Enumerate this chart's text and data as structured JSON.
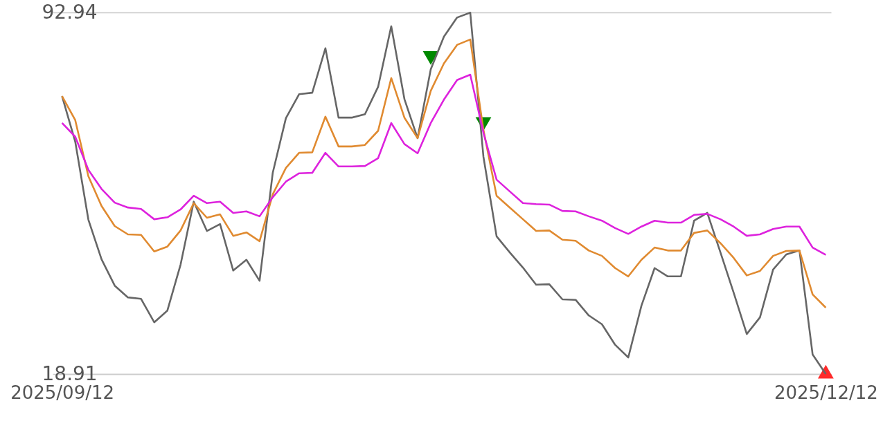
{
  "chart_data": {
    "type": "line",
    "categories": [
      "2025/09/12",
      null,
      null,
      null,
      null,
      null,
      null,
      null,
      null,
      null,
      null,
      null,
      null,
      null,
      null,
      null,
      null,
      null,
      null,
      null,
      null,
      null,
      null,
      null,
      null,
      null,
      null,
      null,
      null,
      null,
      null,
      null,
      null,
      null,
      null,
      null,
      null,
      null,
      null,
      null,
      null,
      null,
      null,
      null,
      null,
      null,
      null,
      null,
      null,
      null,
      null,
      null,
      null,
      null,
      null,
      null,
      null,
      null,
      "2025/12/12"
    ],
    "ylim": [
      18.91,
      92.94
    ],
    "yticks": [
      18.91,
      92.94
    ],
    "grid": "y",
    "series": [
      {
        "color": "#666666",
        "values": [
          75.8,
          66.5,
          50.5,
          42.4,
          37.0,
          34.6,
          34.3,
          29.5,
          31.9,
          41.3,
          54.2,
          48.2,
          49.6,
          40.1,
          42.3,
          38.0,
          60.1,
          71.3,
          76.2,
          76.5,
          85.6,
          71.4,
          71.4,
          72.1,
          77.7,
          90.1,
          75.2,
          67.2,
          81.3,
          88.0,
          91.9,
          92.9,
          63.4,
          47.1,
          43.8,
          40.7,
          37.2,
          37.3,
          34.2,
          34.1,
          30.9,
          29.1,
          24.9,
          22.3,
          32.9,
          40.6,
          38.9,
          38.9,
          50.3,
          51.9,
          43.8,
          35.6,
          27.1,
          30.5,
          40.3,
          43.4,
          44.2,
          22.9,
          18.91
        ]
      },
      {
        "color": "#e08a30",
        "values": [
          75.8,
          70.9,
          59.4,
          53.3,
          49.2,
          47.5,
          47.4,
          44.0,
          45.0,
          48.3,
          53.9,
          50.9,
          51.6,
          47.2,
          47.9,
          46.1,
          55.7,
          61.1,
          64.2,
          64.3,
          71.6,
          65.5,
          65.5,
          65.8,
          68.7,
          79.5,
          71.4,
          67.2,
          76.9,
          82.5,
          86.3,
          87.4,
          68.9,
          55.4,
          53.0,
          50.6,
          48.2,
          48.3,
          46.4,
          46.2,
          44.2,
          43.1,
          40.6,
          38.9,
          42.3,
          44.8,
          44.2,
          44.2,
          47.8,
          48.3,
          45.7,
          42.7,
          39.1,
          40.0,
          43.1,
          44.1,
          44.2,
          35.2,
          32.5
        ]
      },
      {
        "color": "#dd22dd",
        "values": [
          70.3,
          67.5,
          60.7,
          56.8,
          54.0,
          53.0,
          52.7,
          50.6,
          51.0,
          52.6,
          55.4,
          53.9,
          54.2,
          51.9,
          52.2,
          51.2,
          55.1,
          58.3,
          60.0,
          60.1,
          64.2,
          61.4,
          61.4,
          61.5,
          63.1,
          70.3,
          66.0,
          64.1,
          70.3,
          75.1,
          79.1,
          80.2,
          68.3,
          58.7,
          56.3,
          53.9,
          53.7,
          53.6,
          52.3,
          52.2,
          51.2,
          50.3,
          48.8,
          47.6,
          49.1,
          50.3,
          49.9,
          49.9,
          51.5,
          51.7,
          50.6,
          49.1,
          47.2,
          47.5,
          48.6,
          49.1,
          49.1,
          44.8,
          43.3
        ]
      },
      {
        "type": "scatter",
        "marker": "triangle-down",
        "color": "#008800",
        "values": [
          null,
          null,
          null,
          null,
          null,
          null,
          null,
          null,
          null,
          null,
          null,
          null,
          null,
          null,
          null,
          null,
          null,
          null,
          null,
          null,
          null,
          null,
          null,
          null,
          null,
          null,
          null,
          null,
          83.6,
          null,
          null,
          null,
          70.1,
          null,
          null,
          null,
          null,
          null,
          null,
          null,
          null,
          null,
          null,
          null,
          null,
          null,
          null,
          null,
          null,
          null,
          null,
          null,
          null,
          null,
          null,
          null,
          null,
          null,
          null
        ]
      },
      {
        "type": "scatter",
        "marker": "triangle",
        "color": "#ff2a2a",
        "values": [
          null,
          null,
          null,
          null,
          null,
          null,
          null,
          null,
          null,
          null,
          null,
          null,
          null,
          null,
          null,
          null,
          null,
          null,
          null,
          null,
          null,
          null,
          null,
          null,
          null,
          null,
          null,
          null,
          null,
          null,
          null,
          null,
          null,
          null,
          null,
          null,
          null,
          null,
          null,
          null,
          null,
          null,
          null,
          null,
          null,
          null,
          null,
          null,
          null,
          null,
          null,
          null,
          null,
          null,
          null,
          null,
          null,
          null,
          18.91
        ]
      }
    ]
  }
}
